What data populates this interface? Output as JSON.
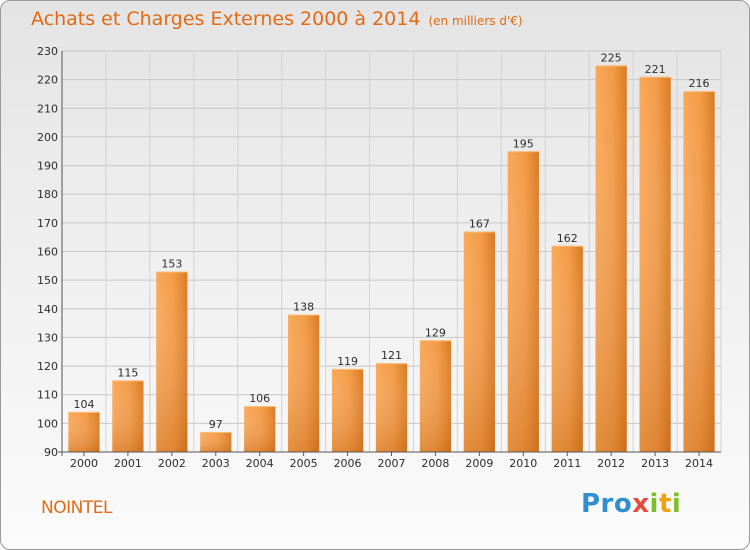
{
  "title": "Achats et Charges Externes 2000 à 2014",
  "subtitle": "(en milliers d'€)",
  "commune": "NOINTEL",
  "logo_text": "Proxiti",
  "colors": {
    "title": "#e06b14",
    "bar_light": "#f8a85a",
    "bar_dark": "#d26b12"
  },
  "chart_data": {
    "type": "bar",
    "title": "Achats et Charges Externes 2000 à 2014",
    "subtitle": "(en milliers d'€)",
    "categories": [
      "2000",
      "2001",
      "2002",
      "2003",
      "2004",
      "2005",
      "2006",
      "2007",
      "2008",
      "2009",
      "2010",
      "2011",
      "2012",
      "2013",
      "2014"
    ],
    "values": [
      104,
      115,
      153,
      97,
      106,
      138,
      119,
      121,
      129,
      167,
      195,
      162,
      225,
      221,
      216
    ],
    "ylim": [
      90,
      230
    ],
    "yticks": [
      90,
      100,
      110,
      120,
      130,
      140,
      150,
      160,
      170,
      180,
      190,
      200,
      210,
      220,
      230
    ],
    "grid": true,
    "xlabel": "",
    "ylabel": ""
  }
}
